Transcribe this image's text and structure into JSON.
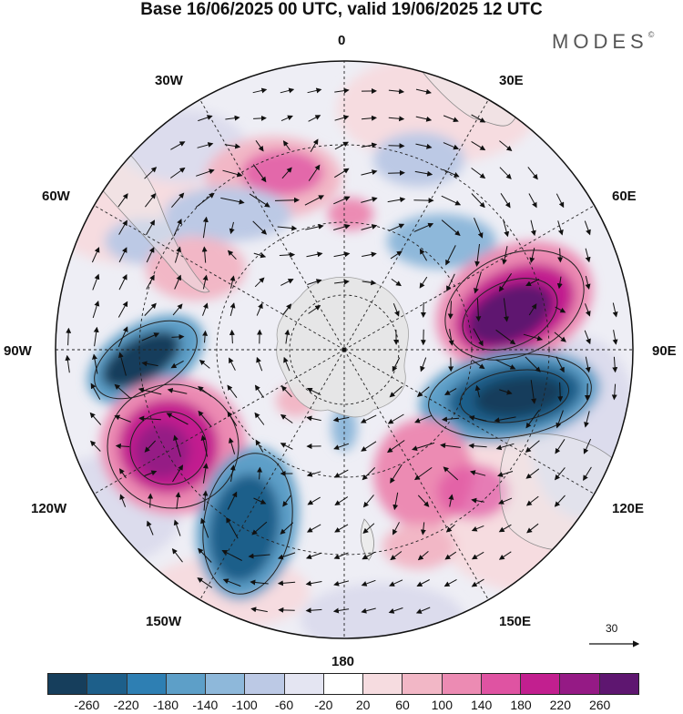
{
  "title": "Base 16/06/2025 00 UTC, valid 19/06/2025 12 UTC",
  "brand": "MODES",
  "brand_mark": "©",
  "longitude_labels": {
    "top": "0",
    "top_left": "30W",
    "top_right": "30E",
    "upper_left": "60W",
    "upper_right": "60E",
    "left": "90W",
    "right": "90E",
    "lower_left": "120W",
    "lower_right": "120E",
    "bottom_left": "150W",
    "bottom_right": "150E",
    "bottom": "180"
  },
  "reference_vector_label": "30",
  "colorbar": {
    "colors": [
      "#163e5c",
      "#1d5f8a",
      "#2e7fb3",
      "#5d9fc8",
      "#8eb8da",
      "#bcc9e5",
      "#e4e5f2",
      "#ffffff",
      "#f6dce0",
      "#f2b7c6",
      "#ec8bb3",
      "#df53a2",
      "#c21f8f",
      "#951a85",
      "#5e1670"
    ],
    "labels": [
      "-260",
      "-220",
      "-180",
      "-140",
      "-100",
      "-60",
      "-20",
      "20",
      "60",
      "100",
      "140",
      "180",
      "220",
      "260"
    ]
  },
  "map_features": {
    "projection": "polar stereographic, south pole centered",
    "field": "height anomaly shading with wind vectors",
    "anomalies": [
      {
        "sign": "positive",
        "strength": 260,
        "location": "60E-90E"
      },
      {
        "sign": "negative",
        "strength": 260,
        "location": "90E-120E"
      },
      {
        "sign": "positive",
        "strength": 220,
        "location": "105W-120W"
      },
      {
        "sign": "negative",
        "strength": 220,
        "location": "90W"
      },
      {
        "sign": "negative",
        "strength": 200,
        "location": "150W-160W"
      },
      {
        "sign": "positive",
        "strength": 140,
        "location": "150E-160E"
      },
      {
        "sign": "positive",
        "strength": 140,
        "location": "10W-20W"
      }
    ]
  }
}
